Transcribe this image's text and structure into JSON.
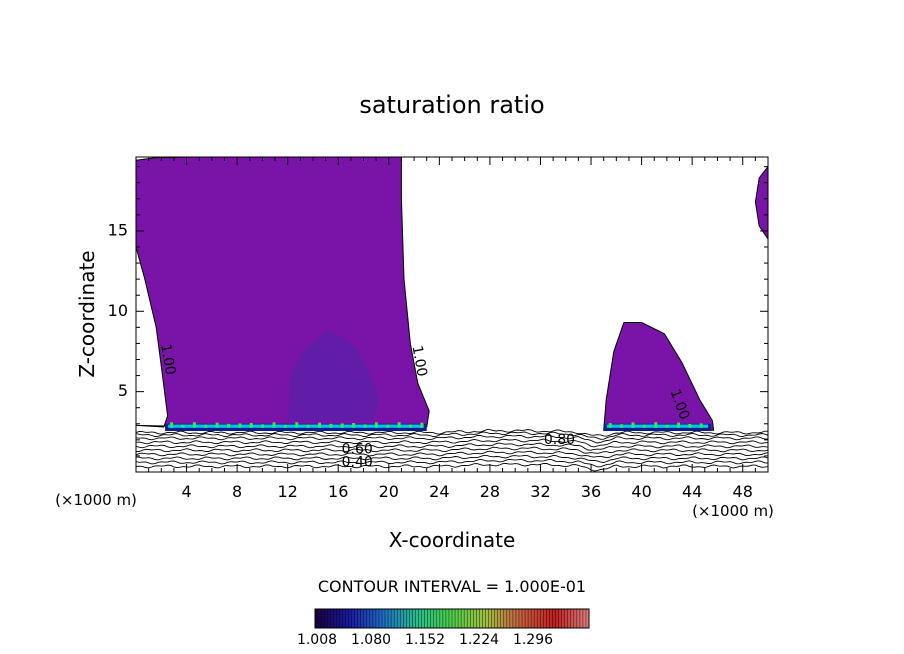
{
  "chart_data": {
    "type": "contour",
    "title": "saturation ratio",
    "xlabel": "X-coordinate",
    "ylabel": "Z-coordinate",
    "x_unit": "(×1000 m)",
    "x_unit_right": "(×1000 m)",
    "xlim": [
      0,
      50
    ],
    "ylim": [
      0,
      19.6
    ],
    "xticks": [
      4,
      8,
      12,
      16,
      20,
      24,
      28,
      32,
      36,
      40,
      44,
      48
    ],
    "yticks": [
      5,
      10,
      15
    ],
    "contour_labels": [
      {
        "text": "1.00",
        "x": 2.5,
        "y": 7.0,
        "angle": 80
      },
      {
        "text": "1.00",
        "x": 22.4,
        "y": 6.9,
        "angle": 80
      },
      {
        "text": "1.00",
        "x": 43.0,
        "y": 4.2,
        "angle": 70
      },
      {
        "text": "0.80",
        "x": 33.5,
        "y": 2.0,
        "angle": 0
      },
      {
        "text": "0.60",
        "x": 17.5,
        "y": 1.4,
        "angle": 0
      },
      {
        "text": "0.40",
        "x": 17.5,
        "y": 0.6,
        "angle": 0
      }
    ],
    "fill_color": "#7a14a8",
    "inner_color": "#5e1fa8",
    "base_colors": [
      "#0a1f8f",
      "#00c6e6",
      "#3de060"
    ],
    "contour_interval_text": "CONTOUR INTERVAL = 1.000E-01",
    "colorbar": {
      "ticks": [
        "1.008",
        "1.080",
        "1.152",
        "1.224",
        "1.296"
      ],
      "colors": [
        "#1a0040",
        "#1a1aa0",
        "#1f6fc8",
        "#27c08a",
        "#4fd04a",
        "#a0c040",
        "#c86040",
        "#c02020",
        "#e08080"
      ]
    },
    "grid": false
  }
}
